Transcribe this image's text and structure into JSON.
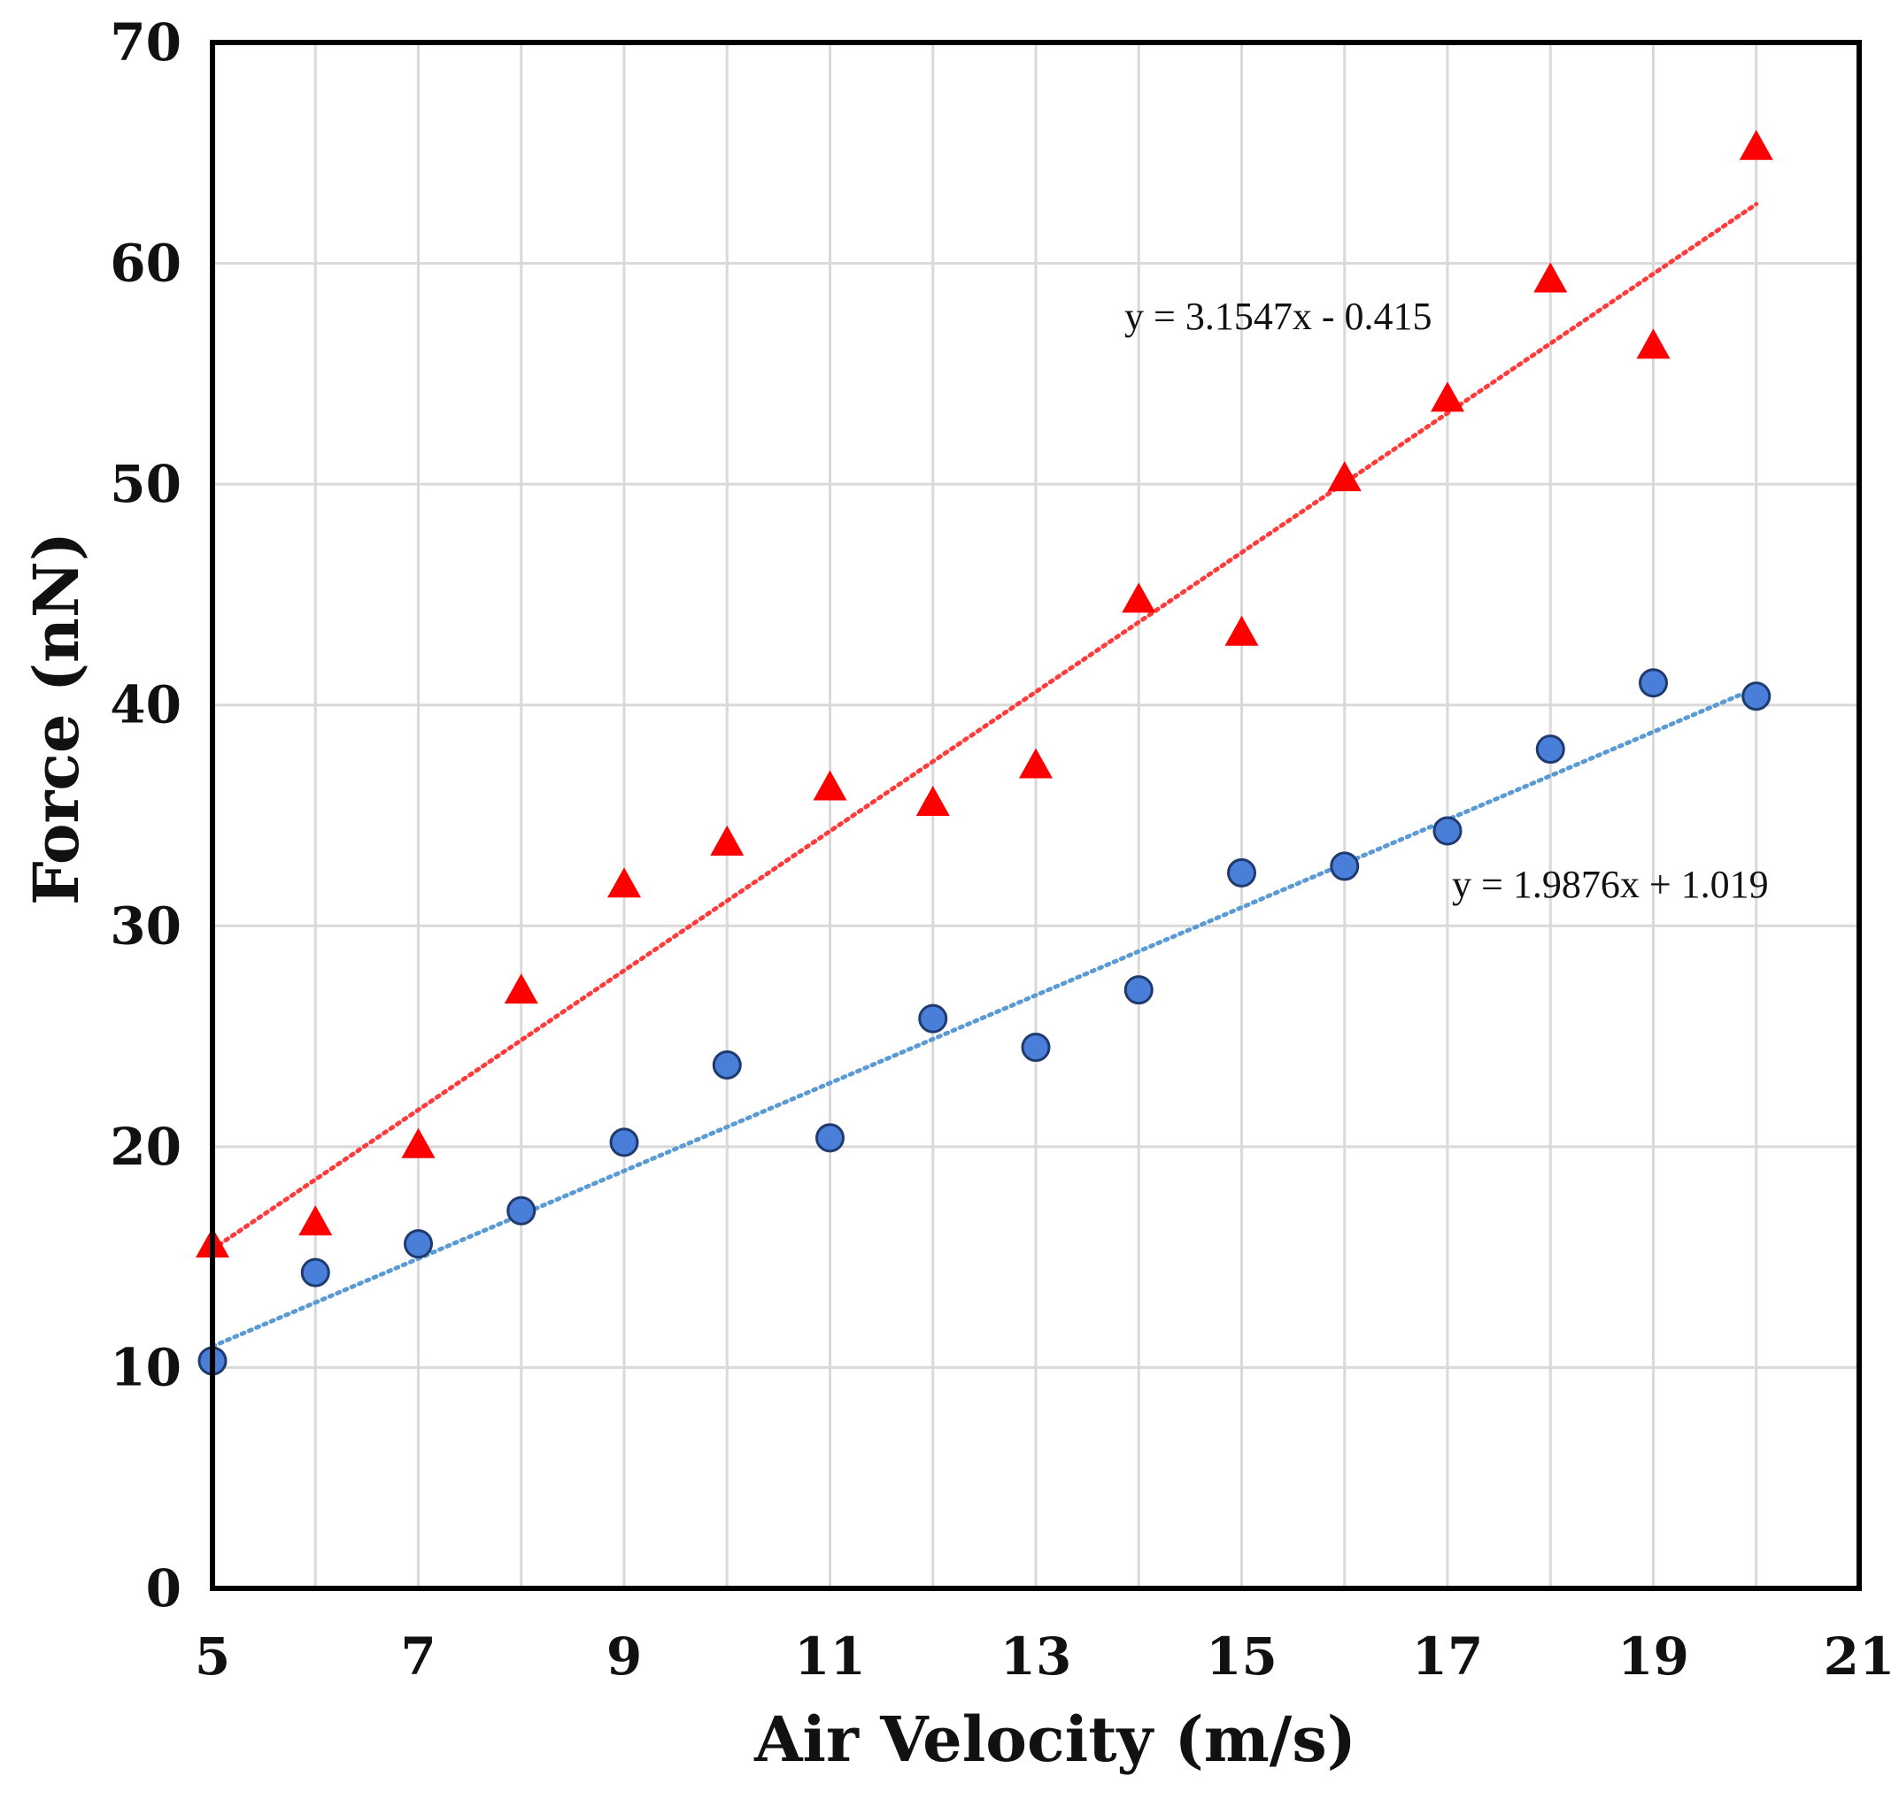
{
  "chart_data": {
    "type": "scatter",
    "title": "",
    "xlabel": "Air Velocity (m/s)",
    "ylabel": "Force (nN)",
    "xlim": [
      5,
      21
    ],
    "ylim": [
      0,
      70
    ],
    "xticks": [
      5,
      7,
      9,
      11,
      13,
      15,
      17,
      19,
      21
    ],
    "yticks": [
      0,
      10,
      20,
      30,
      40,
      50,
      60,
      70
    ],
    "x_gridlines": [
      5,
      6,
      7,
      8,
      9,
      10,
      11,
      12,
      13,
      14,
      15,
      16,
      17,
      18,
      19,
      20,
      21
    ],
    "grid": true,
    "legend": null,
    "series": [
      {
        "name": "triangles",
        "marker": "triangle",
        "color": "#ff0000",
        "x": [
          5,
          6,
          7,
          8,
          9,
          10,
          11,
          12,
          13,
          14,
          15,
          16,
          17,
          18,
          19,
          20
        ],
        "values": [
          15.5,
          16.5,
          20,
          27,
          31.8,
          33.7,
          36.2,
          35.5,
          37.2,
          44.7,
          43.2,
          50.2,
          53.8,
          59.2,
          56.2,
          65.2
        ],
        "trendline": {
          "slope": 3.1547,
          "intercept": -0.415,
          "color": "#ff3b3b",
          "style": "dotted"
        },
        "equation": "y = 3.1547x   - 0.415"
      },
      {
        "name": "circles",
        "marker": "circle",
        "color": "#4a7fd9",
        "x": [
          5,
          6,
          7,
          8,
          9,
          10,
          11,
          12,
          13,
          14,
          15,
          16,
          17,
          18,
          19,
          20
        ],
        "values": [
          10.3,
          14.3,
          15.6,
          17.1,
          20.2,
          23.7,
          20.4,
          25.8,
          24.5,
          27.1,
          32.4,
          32.7,
          34.3,
          38.0,
          41.0,
          40.4
        ],
        "trendline": {
          "slope": 1.9876,
          "intercept": 1.019,
          "color": "#5b9bd5",
          "style": "dotted"
        },
        "equation": "y = 1.9876x   + 1.019"
      }
    ]
  }
}
